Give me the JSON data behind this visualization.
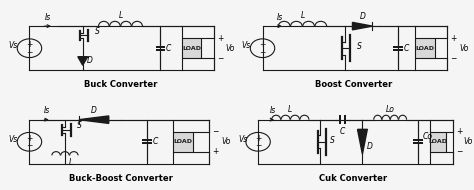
{
  "converters": [
    {
      "name": "Buck Converter"
    },
    {
      "name": "Boost Converter"
    },
    {
      "name": "Buck-Boost Converter"
    },
    {
      "name": "Cuk Converter"
    }
  ],
  "bg_color": "#f5f5f5",
  "line_color": "#1a1a1a",
  "label_fontsize": 5.5,
  "title_fontsize": 6.0
}
